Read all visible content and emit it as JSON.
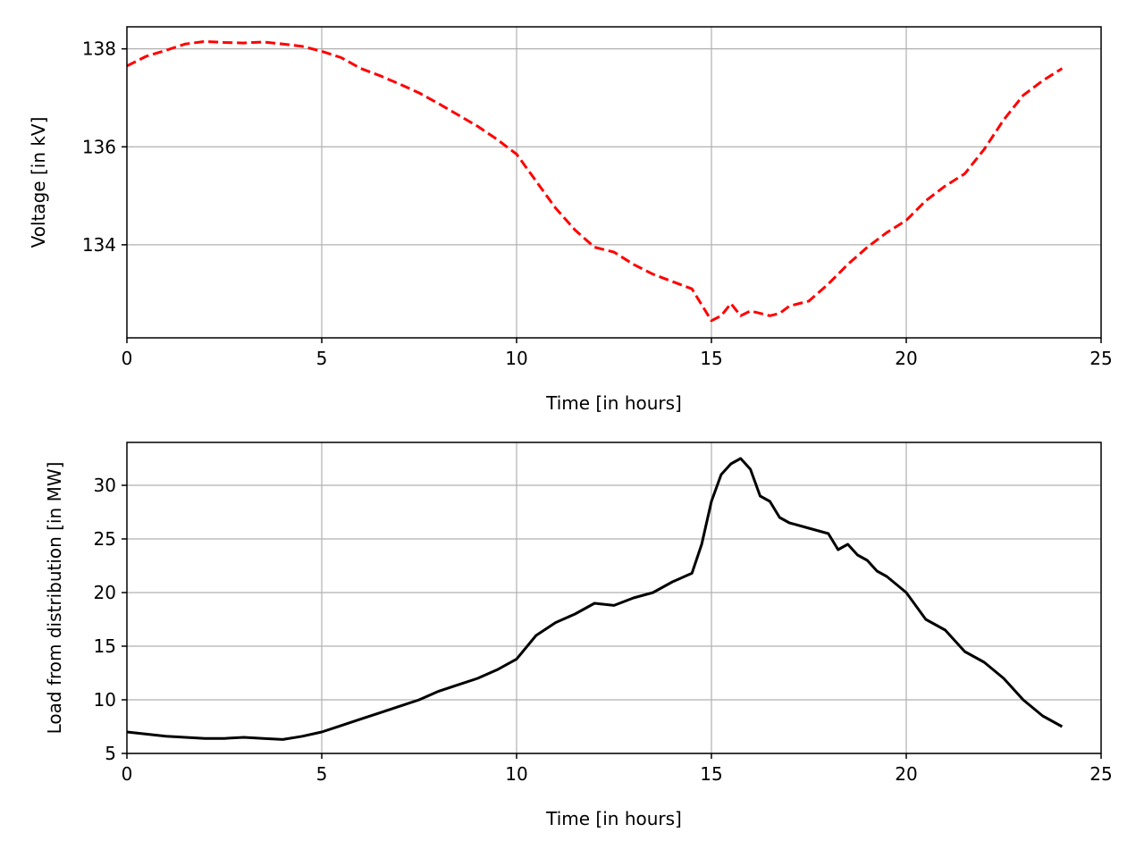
{
  "chart_data": [
    {
      "type": "line",
      "title": "",
      "xlabel": "Time [in hours]",
      "ylabel": "Voltage [in kV]",
      "xlim": [
        0,
        25
      ],
      "ylim": [
        132.1,
        138.45
      ],
      "xticks": [
        0,
        5,
        10,
        15,
        20,
        25
      ],
      "yticks": [
        134,
        136,
        138
      ],
      "grid": true,
      "series": [
        {
          "color": "#ff0000",
          "style": "dashed",
          "x": [
            0,
            0.5,
            1,
            1.5,
            2,
            2.5,
            3,
            3.5,
            4,
            4.5,
            5,
            5.5,
            6,
            6.5,
            7,
            7.5,
            8,
            8.5,
            9,
            9.5,
            10,
            10.5,
            11,
            11.5,
            12,
            12.5,
            13,
            13.5,
            14,
            14.5,
            15,
            15.25,
            15.5,
            15.75,
            16,
            16.25,
            16.5,
            16.75,
            17,
            17.5,
            18,
            18.5,
            19,
            19.5,
            20,
            20.5,
            21,
            21.5,
            22,
            22.5,
            23,
            23.5,
            24
          ],
          "y": [
            137.65,
            137.85,
            137.97,
            138.1,
            138.15,
            138.13,
            138.12,
            138.14,
            138.1,
            138.05,
            137.95,
            137.82,
            137.6,
            137.45,
            137.28,
            137.1,
            136.88,
            136.65,
            136.42,
            136.15,
            135.85,
            135.3,
            134.75,
            134.3,
            133.95,
            133.85,
            133.6,
            133.4,
            133.25,
            133.1,
            132.45,
            132.55,
            132.8,
            132.55,
            132.65,
            132.6,
            132.55,
            132.6,
            132.75,
            132.85,
            133.2,
            133.6,
            133.95,
            134.25,
            134.5,
            134.9,
            135.2,
            135.45,
            135.95,
            136.55,
            137.05,
            137.35,
            137.6
          ]
        }
      ]
    },
    {
      "type": "line",
      "title": "",
      "xlabel": "Time [in hours]",
      "ylabel": "Load from distribution [in MW]",
      "xlim": [
        0,
        25
      ],
      "ylim": [
        5,
        34
      ],
      "xticks": [
        0,
        5,
        10,
        15,
        20,
        25
      ],
      "yticks": [
        5,
        10,
        15,
        20,
        25,
        30
      ],
      "grid": true,
      "series": [
        {
          "color": "#000000",
          "style": "solid",
          "x": [
            0,
            0.5,
            1,
            1.5,
            2,
            2.5,
            3,
            3.5,
            4,
            4.5,
            5,
            5.5,
            6,
            6.5,
            7,
            7.5,
            8,
            8.5,
            9,
            9.5,
            10,
            10.5,
            11,
            11.5,
            12,
            12.5,
            13,
            13.5,
            14,
            14.5,
            14.75,
            15,
            15.25,
            15.5,
            15.75,
            16,
            16.25,
            16.5,
            16.75,
            17,
            17.5,
            18,
            18.25,
            18.5,
            18.75,
            19,
            19.25,
            19.5,
            20,
            20.5,
            21,
            21.5,
            22,
            22.5,
            23,
            23.5,
            24
          ],
          "y": [
            7.0,
            6.8,
            6.6,
            6.5,
            6.4,
            6.4,
            6.5,
            6.4,
            6.3,
            6.6,
            7.0,
            7.6,
            8.2,
            8.8,
            9.4,
            10.0,
            10.8,
            11.4,
            12.0,
            12.8,
            13.8,
            16.0,
            17.2,
            18.0,
            19.0,
            18.8,
            19.5,
            20.0,
            21.0,
            21.8,
            24.5,
            28.5,
            31.0,
            32.0,
            32.5,
            31.5,
            29.0,
            28.5,
            27.0,
            26.5,
            26.0,
            25.5,
            24.0,
            24.5,
            23.5,
            23.0,
            22.0,
            21.5,
            20.0,
            17.5,
            16.5,
            14.5,
            13.5,
            12.0,
            10.0,
            8.5,
            7.5
          ]
        }
      ]
    }
  ]
}
